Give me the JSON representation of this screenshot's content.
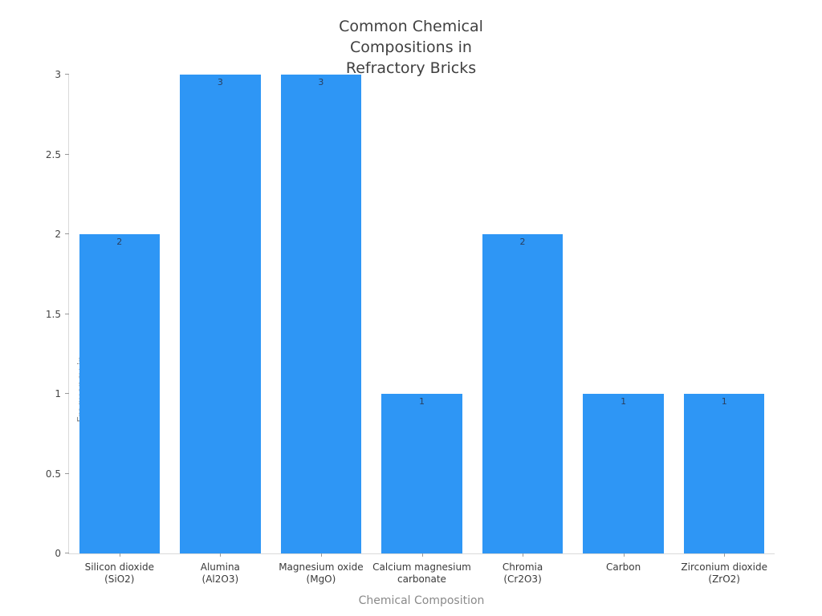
{
  "title": "Common Chemical\nCompositions in\nRefractory Bricks",
  "chart_data": {
    "type": "bar",
    "title": "Common Chemical Compositions in Refractory Bricks",
    "categories": [
      "Silicon dioxide\n(SiO2)",
      "Alumina\n(Al2O3)",
      "Magnesium oxide\n(MgO)",
      "Calcium magnesium\ncarbonate",
      "Chromia\n(Cr2O3)",
      "Carbon",
      "Zirconium dioxide\n(ZrO2)"
    ],
    "values": [
      2,
      3,
      3,
      1,
      2,
      1,
      1
    ],
    "bar_value_labels": [
      "2",
      "3",
      "3",
      "1",
      "2",
      "1",
      "1"
    ],
    "xlabel": "Chemical Composition",
    "ylabel": "Frequency in\nRaw Materials",
    "ylim": [
      0,
      3
    ],
    "yticks": [
      0,
      0.5,
      1,
      1.5,
      2,
      2.5,
      3
    ],
    "ytick_labels": [
      "0",
      "0.5",
      "1",
      "1.5",
      "2",
      "2.5",
      "3"
    ],
    "grid": false,
    "legend": null,
    "bar_gap_fraction": 0.2,
    "colors": {
      "bar": "#2e96f5",
      "bar_label_text": "#2a3f5f",
      "axis_line": "#d9d9d9",
      "tick_mark": "#999999",
      "tick_label_text": "#444444",
      "title_text": "#404040",
      "axis_title_text": "#8a8a8a",
      "background": "#ffffff"
    }
  }
}
